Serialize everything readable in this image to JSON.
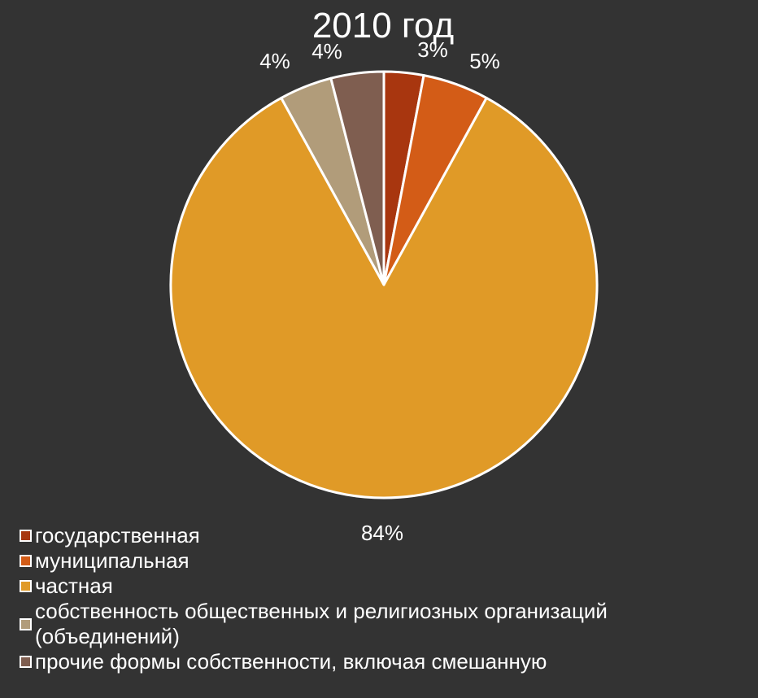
{
  "chart_data": {
    "type": "pie",
    "title": "2010 год",
    "slices": [
      {
        "name": "государственная",
        "value": 3,
        "label": "3%",
        "color": "#A8360F"
      },
      {
        "name": "муниципальная",
        "value": 5,
        "label": "5%",
        "color": "#D35C17"
      },
      {
        "name": "частная",
        "value": 84,
        "label": "84%",
        "color": "#E09A27"
      },
      {
        "name": "собственность общественных и религиозных организаций (объединений)",
        "value": 4,
        "label": "4%",
        "color": "#B19C7A"
      },
      {
        "name": "прочие формы собственности, включая смешанную",
        "value": 4,
        "label": "4%",
        "color": "#7F5E50"
      }
    ],
    "legend_position": "bottom-left"
  },
  "colors": {
    "background": "#333333",
    "slice_border": "#FFFFFF",
    "text": "#FFFFFF"
  }
}
